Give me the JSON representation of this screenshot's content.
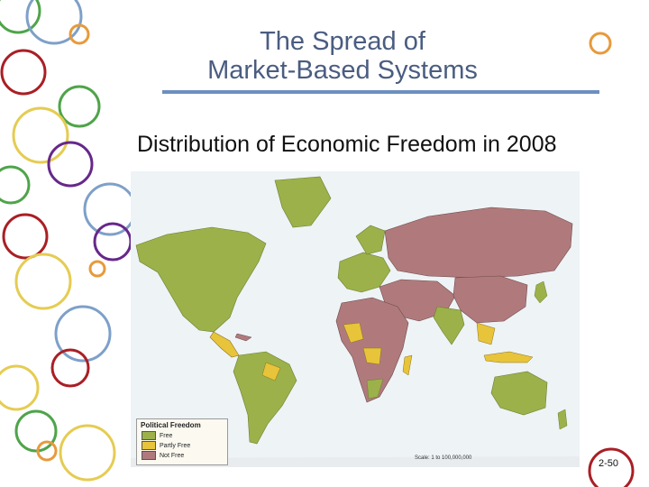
{
  "slide": {
    "title_line1": "The Spread of",
    "title_line2": "Market-Based Systems",
    "subtitle": "Distribution of Economic Freedom in 2008",
    "page_number": "2-50"
  },
  "legend": {
    "title": "Political Freedom",
    "items": [
      {
        "label": "Free",
        "color": "#9cb14a"
      },
      {
        "label": "Partly Free",
        "color": "#e8c43a"
      },
      {
        "label": "Not Free",
        "color": "#b07a7c"
      }
    ]
  },
  "map": {
    "scale_text": "Scale: 1 to 100,000,000",
    "colors": {
      "ocean": "#eef3f6",
      "free": "#9cb14a",
      "partly_free": "#e8c43a",
      "not_free": "#b07a7c"
    }
  },
  "theme": {
    "title_color": "#4a5d80",
    "rule_color": "#6b8fbf",
    "circle_colors": [
      "#4fa44a",
      "#7ea0c8",
      "#e79a3b",
      "#a91f25",
      "#6b8fbf",
      "#e5cc52",
      "#66288a"
    ]
  }
}
